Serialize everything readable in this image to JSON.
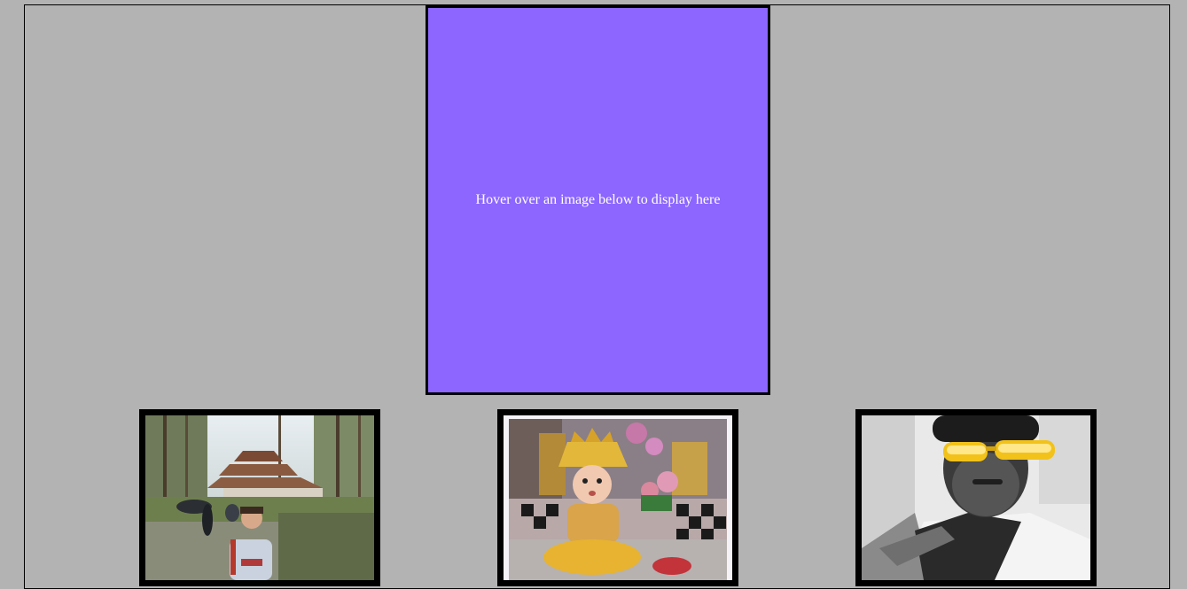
{
  "preview": {
    "text": "Hover over an image below to display here",
    "background": "#8c66ff",
    "text_color": "#ffffff"
  },
  "page": {
    "background": "#b3b3b3",
    "border_color": "#000000"
  },
  "gallery": {
    "images": [
      {
        "subject": "person-at-forest-temple-photo"
      },
      {
        "subject": "child-dressed-as-krishna-photo"
      },
      {
        "subject": "man-with-yellow-sunglasses-photo"
      }
    ]
  }
}
